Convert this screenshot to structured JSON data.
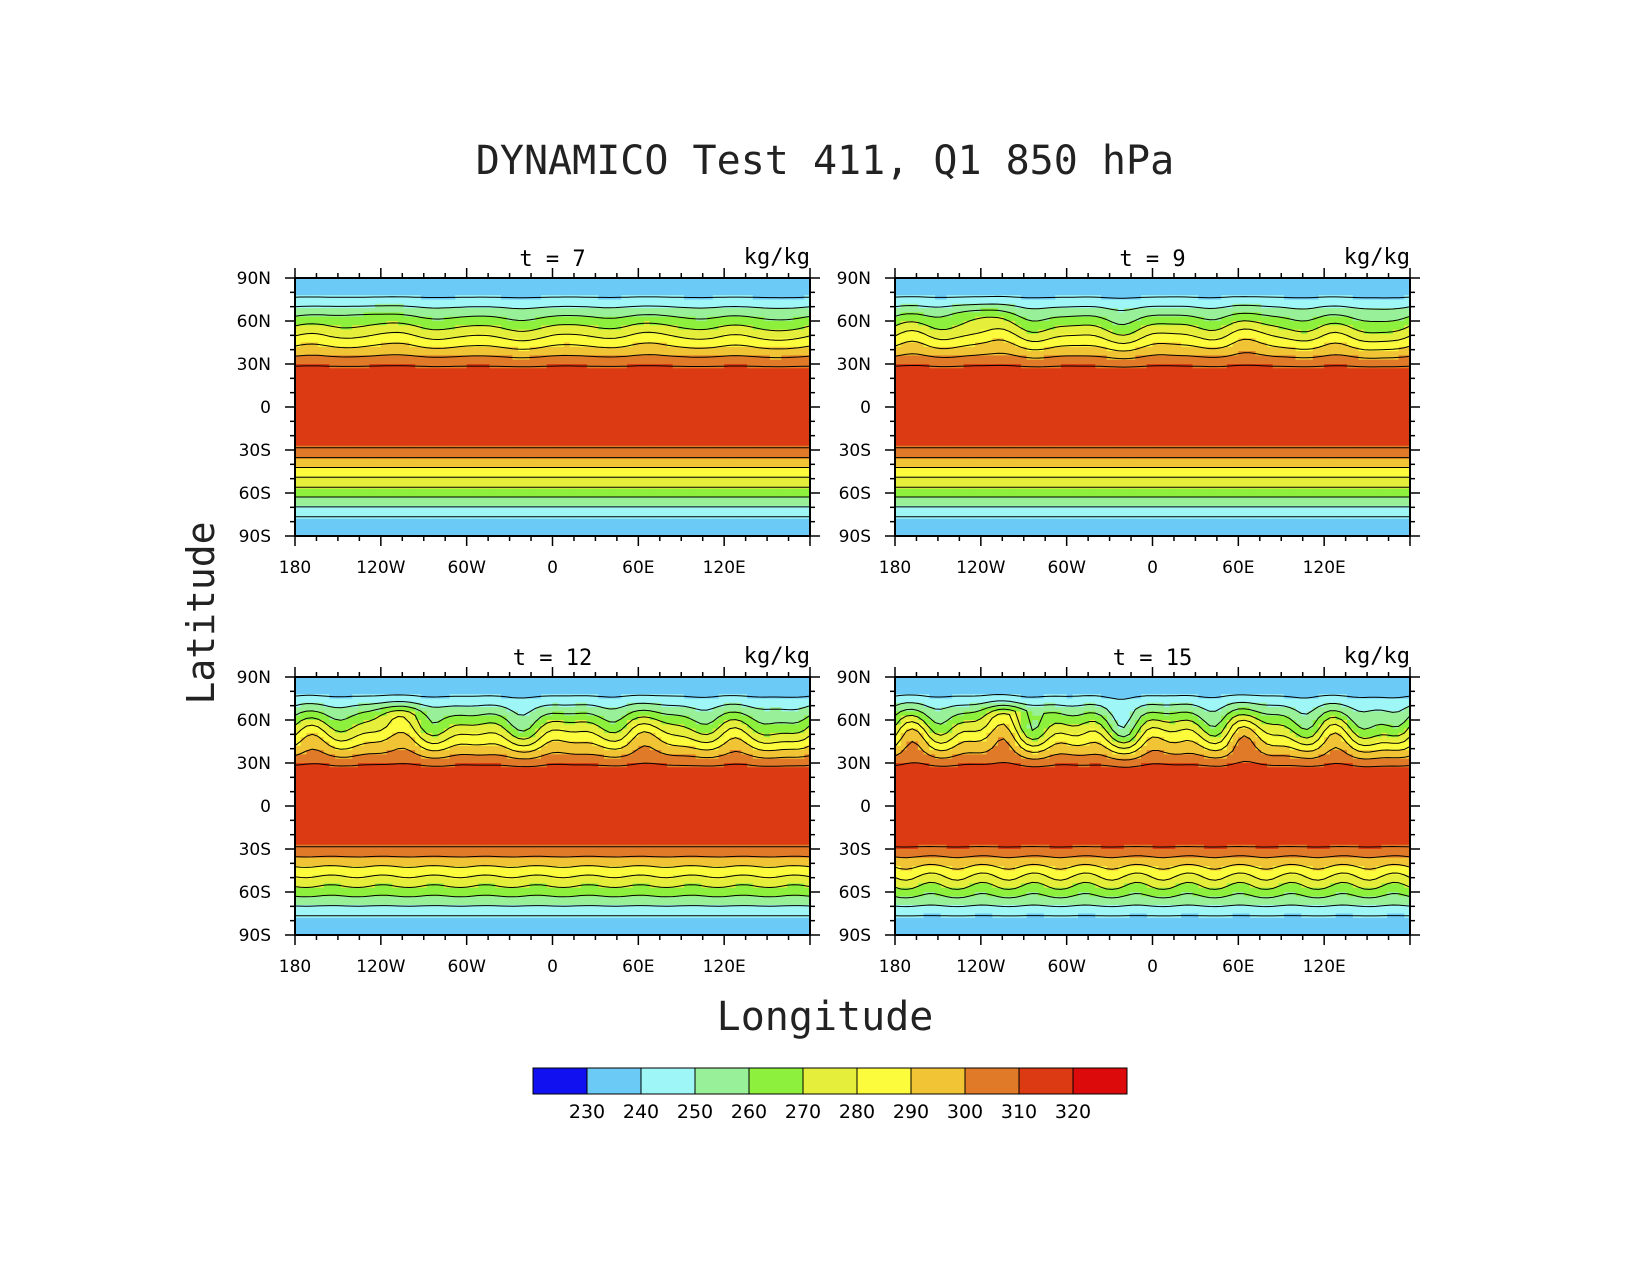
{
  "title": "DYNAMICO Test 411, Q1 850 hPa",
  "ylabel": "Latitude",
  "xlabel": "Longitude",
  "colorbar": {
    "colors": [
      "#1010f0",
      "#6ccaf6",
      "#9ef6f6",
      "#98f098",
      "#8cf03c",
      "#e6ee3c",
      "#fcfc3c",
      "#f0c434",
      "#e07a28",
      "#dc3a12",
      "#dc0a0a"
    ],
    "labels": [
      "230",
      "240",
      "250",
      "260",
      "270",
      "280",
      "290",
      "300",
      "310",
      "320"
    ]
  },
  "chart_data": {
    "type": "heatmap",
    "description_units": "kg/kg",
    "x_ticks": [
      "180",
      "120W",
      "60W",
      "0",
      "60E",
      "120E"
    ],
    "x_tick_values": [
      -180,
      -120,
      -60,
      0,
      60,
      120
    ],
    "xlim": [
      -180,
      180
    ],
    "y_ticks": [
      "90N",
      "60N",
      "30N",
      "0",
      "30S",
      "60S",
      "90S"
    ],
    "y_tick_values": [
      90,
      60,
      30,
      0,
      -30,
      -60,
      -90
    ],
    "ylim": [
      -90,
      90
    ],
    "levels": [
      230,
      240,
      250,
      260,
      270,
      280,
      290,
      300,
      310,
      320
    ],
    "panels": [
      {
        "label": "t = 7",
        "units": "kg/kg",
        "north_amp": 3,
        "eddy": 0.2,
        "south_amp": 0
      },
      {
        "label": "t = 9",
        "units": "kg/kg",
        "north_amp": 5,
        "eddy": 0.5,
        "south_amp": 0
      },
      {
        "label": "t = 12",
        "units": "kg/kg",
        "north_amp": 8,
        "eddy": 0.8,
        "south_amp": 1.5
      },
      {
        "label": "t = 15",
        "units": "kg/kg",
        "north_amp": 11,
        "eddy": 1.0,
        "south_amp": 4
      }
    ]
  }
}
